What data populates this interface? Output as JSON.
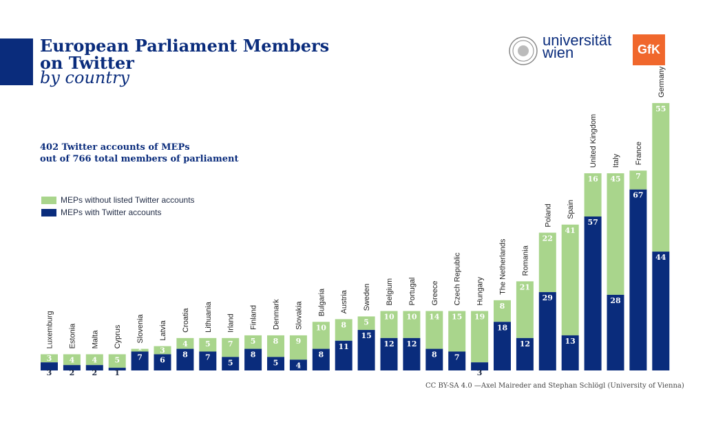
{
  "header": {
    "title": "European Parliament Members on Twitter",
    "subtitle": "by country",
    "summary_line1": "402 Twitter accounts of MEPs",
    "summary_line2": "out of 766 total members of parliament"
  },
  "logos": {
    "university_line1": "universität",
    "university_line2": "wien",
    "gfk": "GfK"
  },
  "credit": "CC BY-SA 4.0 —Axel Maireder and Stephan Schlögl (University of Vienna)",
  "colors": {
    "with_twitter": "#0a2c7c",
    "without_twitter": "#a9d58c",
    "accent": "#0a2c7c"
  },
  "chart_data": {
    "type": "bar",
    "stacked": true,
    "categories": [
      "Luxemburg",
      "Estonia",
      "Malta",
      "Cyprus",
      "Slovenia",
      "Latvia",
      "Croatia",
      "Lithuania",
      "Irland",
      "Finland",
      "Denmark",
      "Slovakia",
      "Bulgaria",
      "Austria",
      "Sweden",
      "Belgium",
      "Portugal",
      "Greece",
      "Czech Republic",
      "Hungary",
      "The Netherlands",
      "Romania",
      "Poland",
      "Spain",
      "United Kingdom",
      "Italy",
      "France",
      "Germany"
    ],
    "series": [
      {
        "name": "MEPs with Twitter accounts",
        "values": [
          3,
          2,
          2,
          1,
          7,
          6,
          8,
          7,
          5,
          8,
          5,
          4,
          8,
          11,
          15,
          12,
          12,
          8,
          7,
          3,
          18,
          12,
          29,
          13,
          57,
          28,
          67,
          44
        ]
      },
      {
        "name": "MEPs without listed Twitter accounts",
        "values": [
          3,
          4,
          4,
          5,
          1,
          3,
          4,
          5,
          7,
          5,
          8,
          9,
          10,
          8,
          5,
          10,
          10,
          14,
          15,
          19,
          8,
          21,
          22,
          41,
          16,
          45,
          7,
          55
        ]
      }
    ],
    "legend": [
      "MEPs without listed Twitter accounts",
      "MEPs with Twitter accounts"
    ],
    "legend_position": "left",
    "grid": false
  }
}
